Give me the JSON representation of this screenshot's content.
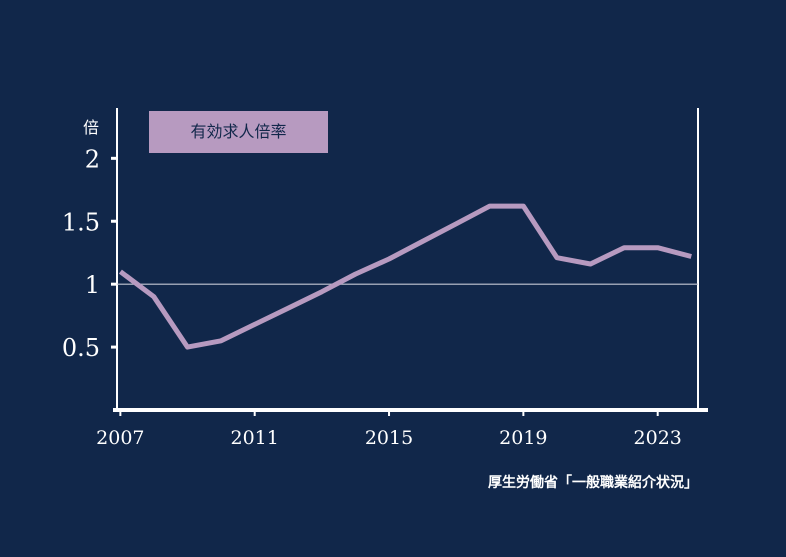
{
  "chart_data": {
    "type": "line",
    "y_unit": "倍",
    "legend": "有効求人倍率",
    "x": [
      2007,
      2008,
      2009,
      2010,
      2011,
      2012,
      2013,
      2014,
      2015,
      2016,
      2017,
      2018,
      2019,
      2020,
      2021,
      2022,
      2023,
      2024
    ],
    "series": [
      {
        "name": "有効求人倍率",
        "values": [
          1.1,
          0.9,
          0.5,
          0.55,
          0.68,
          0.81,
          0.94,
          1.08,
          1.2,
          1.34,
          1.48,
          1.62,
          1.62,
          1.21,
          1.16,
          1.29,
          1.29,
          1.22
        ]
      }
    ],
    "xticks": [
      2007,
      2011,
      2015,
      2019,
      2023
    ],
    "yticks": [
      0.5,
      1,
      1.5,
      2
    ],
    "ytick_labels": [
      "0.5",
      "1",
      "1.5",
      "2"
    ],
    "xlim": [
      2006.9,
      2024.2
    ],
    "ylim": [
      0,
      2.4
    ],
    "reference_line": 1,
    "grid": false,
    "legend_position": "top-left",
    "colors": {
      "background": "#11274a",
      "line": "#b79ac0",
      "axis": "#ffffff",
      "reference": "#c6c9d4",
      "legend_box": "#b79ac0",
      "legend_text": "#11274a"
    }
  },
  "source": "厚生労働省「一般職業紹介状況」"
}
